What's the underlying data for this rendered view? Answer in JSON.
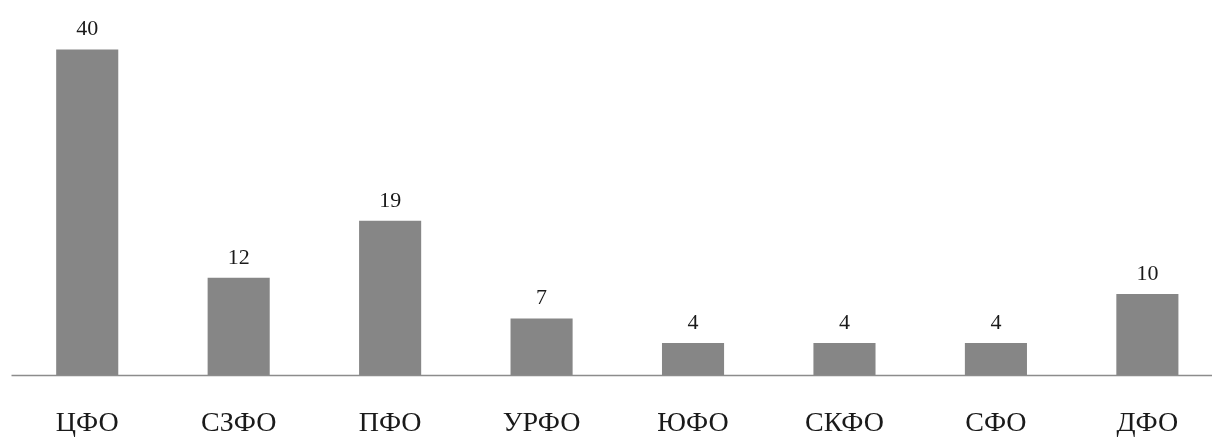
{
  "chart_data": {
    "type": "bar",
    "categories": [
      "ЦФО",
      "СЗФО",
      "ПФО",
      "УРФО",
      "ЮФО",
      "СКФО",
      "СФО",
      "ДФО"
    ],
    "values": [
      40,
      12,
      19,
      7,
      4,
      4,
      4,
      10
    ],
    "color": "#868686",
    "data_labels": true
  }
}
